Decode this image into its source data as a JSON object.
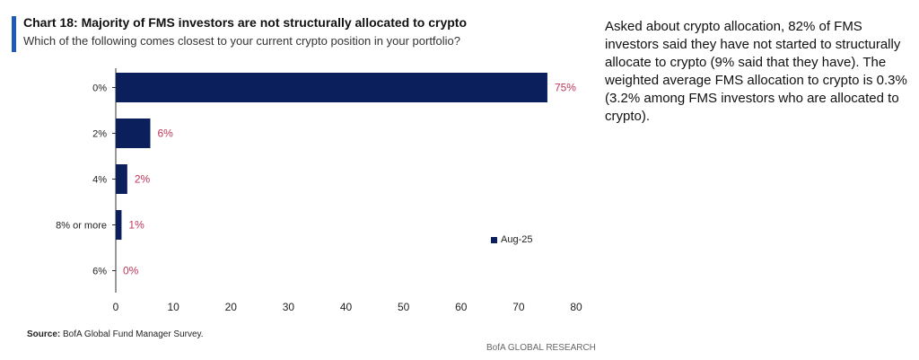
{
  "colors": {
    "accent": "#1f5ab8",
    "bar": "#0b1f5c",
    "data_label": "#c0385b",
    "axis": "#333333"
  },
  "header": {
    "title": "Chart 18: Majority of FMS investors are not structurally allocated to crypto",
    "subtitle": "Which of the following comes closest to your current crypto position in your portfolio?"
  },
  "commentary": "Asked about crypto allocation, 82% of FMS investors said they have not started to structurally allocate to crypto (9% said that they have). The weighted average FMS allocation to crypto is 0.3% (3.2% among FMS investors who are allocated to crypto).",
  "footer": {
    "source_label": "Source:",
    "source_text": " BofA Global Fund Manager Survey.",
    "brand": "BofA GLOBAL RESEARCH"
  },
  "chart_data": {
    "type": "bar",
    "orientation": "horizontal",
    "categories": [
      "0%",
      "2%",
      "4%",
      "8% or more",
      "6%"
    ],
    "series": [
      {
        "name": "Aug-25",
        "values": [
          75,
          6,
          2,
          1,
          0
        ]
      }
    ],
    "data_labels": [
      "75%",
      "6%",
      "2%",
      "1%",
      "0%"
    ],
    "xlim": [
      0,
      80
    ],
    "xticks": [
      0,
      10,
      20,
      30,
      40,
      50,
      60,
      70,
      80
    ],
    "title": "Chart 18: Majority of FMS investors are not structurally allocated to crypto",
    "xlabel": "",
    "ylabel": "",
    "legend_position": "center-right",
    "grid": false
  }
}
